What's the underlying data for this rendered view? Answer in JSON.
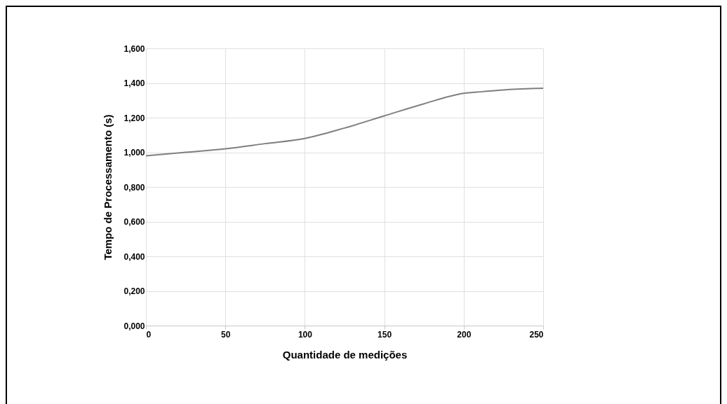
{
  "chart_data": {
    "type": "line",
    "xlabel": "Quantidade de medições",
    "ylabel": "Tempo de Processamento (s)",
    "x": [
      0,
      25,
      50,
      75,
      100,
      125,
      150,
      175,
      200,
      212,
      225,
      250
    ],
    "series": [
      {
        "color": "#7f7f7f",
        "values": [
          0.98,
          1.0,
          1.02,
          1.05,
          1.08,
          1.14,
          1.21,
          1.28,
          1.34,
          1.35,
          1.36,
          1.37
        ]
      }
    ],
    "xlim": [
      0,
      250
    ],
    "xticks": [
      0,
      50,
      100,
      150,
      200,
      250
    ],
    "ylim": [
      0,
      1.6
    ],
    "yticks": [
      {
        "value": 0,
        "label": "0,000"
      },
      {
        "value": 0.2,
        "label": "0,200"
      },
      {
        "value": 0.4,
        "label": "0,400"
      },
      {
        "value": 0.6,
        "label": "0,600"
      },
      {
        "value": 0.8,
        "label": "0,800"
      },
      {
        "value": 1.0,
        "label": "1,000"
      },
      {
        "value": 1.2,
        "label": "1,200"
      },
      {
        "value": 1.4,
        "label": "1,400"
      },
      {
        "value": 1.6,
        "label": "1,600"
      }
    ],
    "grid": true,
    "marker": "none",
    "line_style": "solid"
  }
}
